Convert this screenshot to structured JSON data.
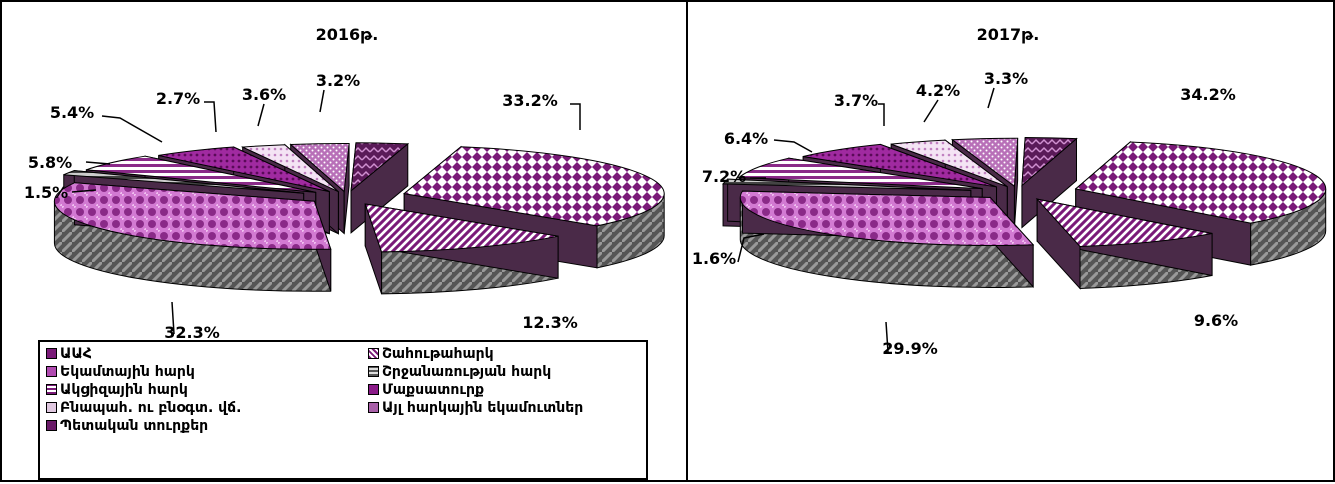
{
  "colors": {
    "purple": "#7a1a78",
    "violet": "#c05ac0",
    "light": "#eeddee",
    "gray": "#8e8e8e",
    "white": "#ffffff",
    "dark": "#3a1a38"
  },
  "chart_data": [
    {
      "type": "pie",
      "title": "2016թ.",
      "slices": [
        {
          "label": "ԱԱՀ",
          "value": 33.2
        },
        {
          "label": "Շահութահարկ",
          "value": 12.3
        },
        {
          "label": "Եկամտային հարկ",
          "value": 32.3
        },
        {
          "label": "Շրջանառության հարկ",
          "value": 1.5
        },
        {
          "label": "Ակցիզային հարկ",
          "value": 5.8
        },
        {
          "label": "Մաքսատուրք",
          "value": 5.4
        },
        {
          "label": "Բնապահ. ու բնօգտ. վճ.",
          "value": 2.7
        },
        {
          "label": "Այլ հարկային եկամուտներ",
          "value": 3.6
        },
        {
          "label": "Պետական տուրքեր",
          "value": 3.2
        }
      ],
      "data_labels": [
        "33.2%",
        "12.3%",
        "32.3%",
        "1.5%",
        "5.8%",
        "5.4%",
        "2.7%",
        "3.6%",
        "3.2%"
      ]
    },
    {
      "type": "pie",
      "title": "2017թ.",
      "slices": [
        {
          "label": "ԱԱՀ",
          "value": 34.2
        },
        {
          "label": "Շահութահարկ",
          "value": 9.6
        },
        {
          "label": "Եկամտային հարկ",
          "value": 29.9
        },
        {
          "label": "Շրջանառության հարկ",
          "value": 1.6
        },
        {
          "label": "Ակցիզային հարկ",
          "value": 7.2
        },
        {
          "label": "Մաքսատուրք",
          "value": 6.4
        },
        {
          "label": "Բնապահ. ու բնօգտ. վճ.",
          "value": 3.7
        },
        {
          "label": "Այլ հարկային եկամուտներ",
          "value": 4.2
        },
        {
          "label": "Պետական տուրքեր",
          "value": 3.3
        }
      ],
      "data_labels": [
        "34.2%",
        "9.6%",
        "29.9%",
        "1.6%",
        "7.2%",
        "6.4%",
        "3.7%",
        "4.2%",
        "3.3%"
      ]
    }
  ],
  "legend": {
    "items": [
      {
        "label": "ԱԱՀ",
        "icon": "vat-swatch-icon"
      },
      {
        "label": "Շահութահարկ",
        "icon": "profit-tax-swatch-icon"
      },
      {
        "label": "Եկամտային հարկ",
        "icon": "income-tax-swatch-icon"
      },
      {
        "label": "Շրջանառության հարկ",
        "icon": "turnover-tax-swatch-icon"
      },
      {
        "label": "Ակցիզային հարկ",
        "icon": "excise-tax-swatch-icon"
      },
      {
        "label": "Մաքսատուրք",
        "icon": "customs-duty-swatch-icon"
      },
      {
        "label": "Բնապահ. ու բնօգտ. վճ.",
        "icon": "environment-fees-swatch-icon"
      },
      {
        "label": "Այլ հարկային եկամուտներ",
        "icon": "other-tax-swatch-icon"
      },
      {
        "label": "Պետական տուրքեր",
        "icon": "state-duties-swatch-icon"
      }
    ]
  }
}
